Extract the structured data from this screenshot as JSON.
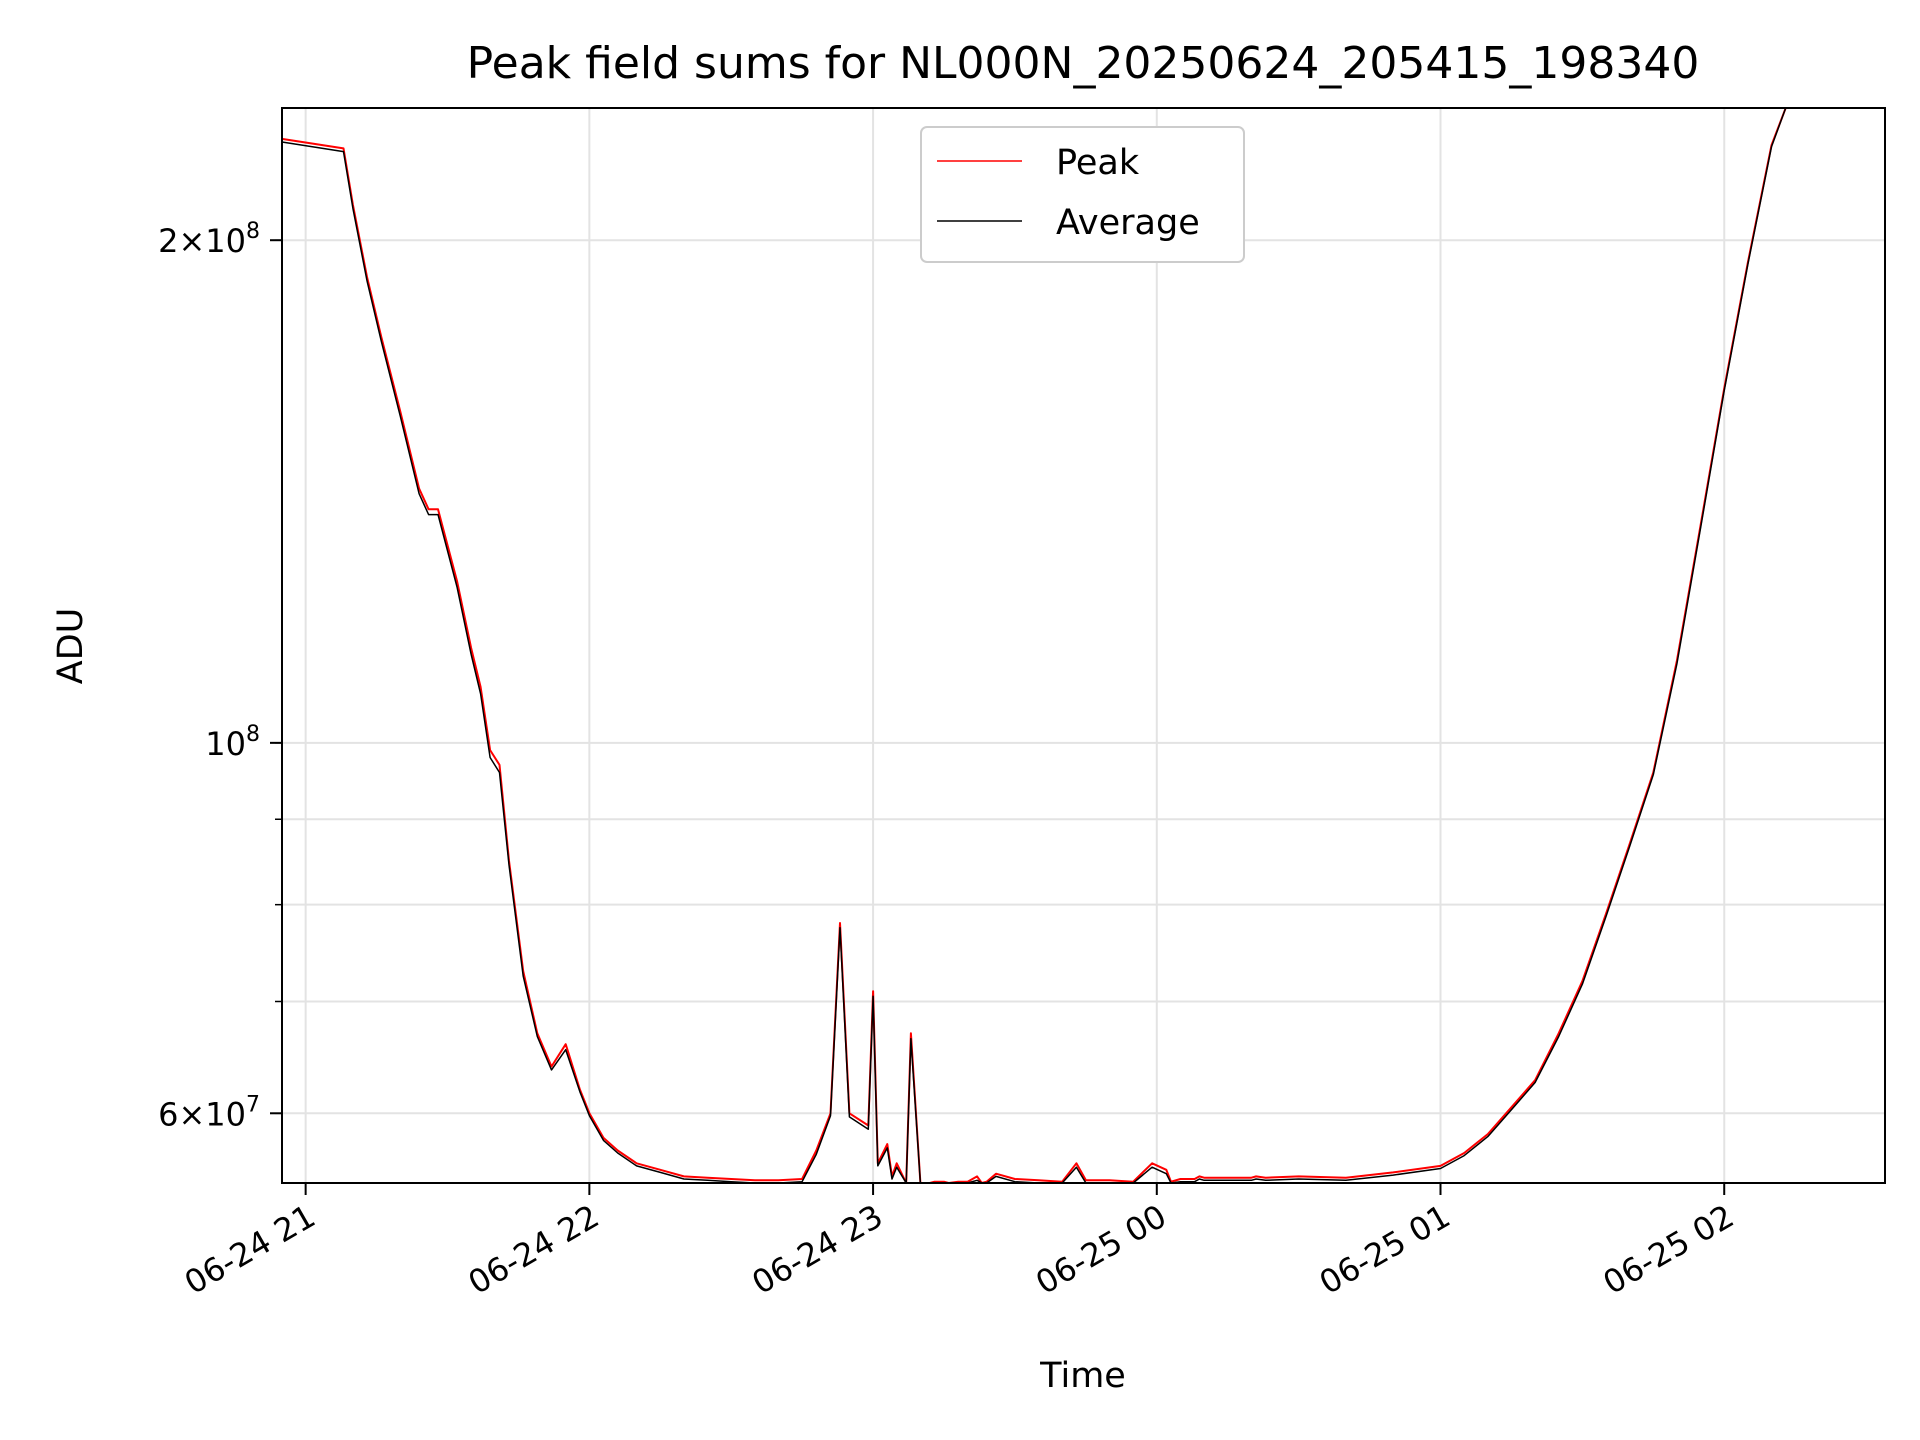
{
  "chart_data": {
    "type": "line",
    "title": "Peak field sums for NL000N_20250624_205415_198340",
    "xlabel": "Time",
    "ylabel": "ADU",
    "yscale": "log",
    "grid": true,
    "legend_placement": "top-center",
    "x_ticks": [
      "06-24 21",
      "06-24 22",
      "06-24 23",
      "06-25 00",
      "06-25 01",
      "06-25 02"
    ],
    "y_ticks": [
      {
        "value": 60000000,
        "mantissa": "6",
        "exponent": "7"
      },
      {
        "value": 100000000,
        "mantissa": "",
        "exponent": "8"
      },
      {
        "value": 200000000,
        "mantissa": "2",
        "exponent": "8"
      }
    ],
    "xlim": [
      "2025-06-24 20:55",
      "2025-06-25 02:34"
    ],
    "ylim": [
      54500000,
      240000000
    ],
    "series": [
      {
        "name": "Peak",
        "color": "#ff0000",
        "x": [
          "2025-06-24 20:55",
          "2025-06-24 21:08",
          "2025-06-24 21:10",
          "2025-06-24 21:13",
          "2025-06-24 21:16",
          "2025-06-24 21:20",
          "2025-06-24 21:24",
          "2025-06-24 21:26",
          "2025-06-24 21:28",
          "2025-06-24 21:32",
          "2025-06-24 21:35",
          "2025-06-24 21:37",
          "2025-06-24 21:39",
          "2025-06-24 21:41",
          "2025-06-24 21:43",
          "2025-06-24 21:46",
          "2025-06-24 21:49",
          "2025-06-24 21:52",
          "2025-06-24 21:55",
          "2025-06-24 21:58",
          "2025-06-24 22:00",
          "2025-06-24 22:03",
          "2025-06-24 22:06",
          "2025-06-24 22:10",
          "2025-06-24 22:15",
          "2025-06-24 22:20",
          "2025-06-24 22:25",
          "2025-06-24 22:30",
          "2025-06-24 22:35",
          "2025-06-24 22:40",
          "2025-06-24 22:45",
          "2025-06-24 22:48",
          "2025-06-24 22:51",
          "2025-06-24 22:53",
          "2025-06-24 22:55",
          "2025-06-24 22:59",
          "2025-06-24 23:00",
          "2025-06-24 23:01",
          "2025-06-24 23:03",
          "2025-06-24 23:04",
          "2025-06-24 23:05",
          "2025-06-24 23:07",
          "2025-06-24 23:08",
          "2025-06-24 23:10",
          "2025-06-24 23:12",
          "2025-06-24 23:13",
          "2025-06-24 23:15",
          "2025-06-24 23:16",
          "2025-06-24 23:18",
          "2025-06-24 23:20",
          "2025-06-24 23:22",
          "2025-06-24 23:23",
          "2025-06-24 23:24",
          "2025-06-24 23:26",
          "2025-06-24 23:30",
          "2025-06-24 23:35",
          "2025-06-24 23:40",
          "2025-06-24 23:43",
          "2025-06-24 23:45",
          "2025-06-24 23:50",
          "2025-06-24 23:55",
          "2025-06-24 23:59",
          "2025-06-25 00:02",
          "2025-06-25 00:03",
          "2025-06-25 00:05",
          "2025-06-25 00:08",
          "2025-06-25 00:09",
          "2025-06-25 00:10",
          "2025-06-25 00:15",
          "2025-06-25 00:20",
          "2025-06-25 00:21",
          "2025-06-25 00:23",
          "2025-06-25 00:30",
          "2025-06-25 00:40",
          "2025-06-25 00:50",
          "2025-06-25 01:00",
          "2025-06-25 01:05",
          "2025-06-25 01:10",
          "2025-06-25 01:15",
          "2025-06-25 01:20",
          "2025-06-25 01:25",
          "2025-06-25 01:30",
          "2025-06-25 01:35",
          "2025-06-25 01:40",
          "2025-06-25 01:45",
          "2025-06-25 01:50",
          "2025-06-25 01:55",
          "2025-06-25 02:00",
          "2025-06-25 02:05",
          "2025-06-25 02:10",
          "2025-06-25 02:13",
          "2025-06-25 02:16"
        ],
        "values": [
          230000000,
          227000000,
          210000000,
          190000000,
          175000000,
          158000000,
          142000000,
          138000000,
          138000000,
          125000000,
          114000000,
          108000000,
          99000000,
          97000000,
          85000000,
          73000000,
          67000000,
          64000000,
          66000000,
          62000000,
          60000000,
          58000000,
          57000000,
          56000000,
          55500000,
          55000000,
          54900000,
          54800000,
          54700000,
          54700000,
          54800000,
          57000000,
          60000000,
          78000000,
          60000000,
          59000000,
          71000000,
          56000000,
          57500000,
          55000000,
          56000000,
          54500000,
          67000000,
          54500000,
          54500000,
          54600000,
          54600000,
          54500000,
          54600000,
          54600000,
          55000000,
          54500000,
          54600000,
          55200000,
          54800000,
          54700000,
          54600000,
          56000000,
          54700000,
          54700000,
          54600000,
          56000000,
          55500000,
          54600000,
          54800000,
          54800000,
          55000000,
          54900000,
          54900000,
          54900000,
          55000000,
          54900000,
          55000000,
          54900000,
          55300000,
          55800000,
          56800000,
          58300000,
          60500000,
          62800000,
          67000000,
          72000000,
          79000000,
          87000000,
          96000000,
          112000000,
          135000000,
          163000000,
          194000000,
          228000000,
          240000000,
          240000000
        ]
      },
      {
        "name": "Average",
        "color": "#000000",
        "x": [
          "2025-06-24 20:55",
          "2025-06-24 21:08",
          "2025-06-24 21:10",
          "2025-06-24 21:13",
          "2025-06-24 21:16",
          "2025-06-24 21:20",
          "2025-06-24 21:24",
          "2025-06-24 21:26",
          "2025-06-24 21:28",
          "2025-06-24 21:32",
          "2025-06-24 21:35",
          "2025-06-24 21:37",
          "2025-06-24 21:39",
          "2025-06-24 21:41",
          "2025-06-24 21:43",
          "2025-06-24 21:46",
          "2025-06-24 21:49",
          "2025-06-24 21:52",
          "2025-06-24 21:55",
          "2025-06-24 21:58",
          "2025-06-24 22:00",
          "2025-06-24 22:03",
          "2025-06-24 22:06",
          "2025-06-24 22:10",
          "2025-06-24 22:15",
          "2025-06-24 22:20",
          "2025-06-24 22:25",
          "2025-06-24 22:30",
          "2025-06-24 22:35",
          "2025-06-24 22:40",
          "2025-06-24 22:45",
          "2025-06-24 22:48",
          "2025-06-24 22:51",
          "2025-06-24 22:53",
          "2025-06-24 22:55",
          "2025-06-24 22:59",
          "2025-06-24 23:00",
          "2025-06-24 23:01",
          "2025-06-24 23:03",
          "2025-06-24 23:04",
          "2025-06-24 23:05",
          "2025-06-24 23:07",
          "2025-06-24 23:08",
          "2025-06-24 23:10",
          "2025-06-24 23:12",
          "2025-06-24 23:13",
          "2025-06-24 23:15",
          "2025-06-24 23:16",
          "2025-06-24 23:18",
          "2025-06-24 23:20",
          "2025-06-24 23:22",
          "2025-06-24 23:23",
          "2025-06-24 23:24",
          "2025-06-24 23:26",
          "2025-06-24 23:30",
          "2025-06-24 23:35",
          "2025-06-24 23:40",
          "2025-06-24 23:43",
          "2025-06-24 23:45",
          "2025-06-24 23:50",
          "2025-06-24 23:55",
          "2025-06-24 23:59",
          "2025-06-25 00:02",
          "2025-06-25 00:03",
          "2025-06-25 00:05",
          "2025-06-25 00:08",
          "2025-06-25 00:09",
          "2025-06-25 00:10",
          "2025-06-25 00:15",
          "2025-06-25 00:20",
          "2025-06-25 00:21",
          "2025-06-25 00:23",
          "2025-06-25 00:30",
          "2025-06-25 00:40",
          "2025-06-25 00:50",
          "2025-06-25 01:00",
          "2025-06-25 01:05",
          "2025-06-25 01:10",
          "2025-06-25 01:15",
          "2025-06-25 01:20",
          "2025-06-25 01:25",
          "2025-06-25 01:30",
          "2025-06-25 01:35",
          "2025-06-25 01:40",
          "2025-06-25 01:45",
          "2025-06-25 01:50",
          "2025-06-25 01:55",
          "2025-06-25 02:00",
          "2025-06-25 02:05",
          "2025-06-25 02:10",
          "2025-06-25 02:13",
          "2025-06-25 02:16"
        ],
        "values": [
          229000000,
          226000000,
          209000000,
          189000000,
          174000000,
          157000000,
          141000000,
          137000000,
          137000000,
          124000000,
          113000000,
          107000000,
          98000000,
          96000000,
          84500000,
          72500000,
          66700000,
          63700000,
          65500000,
          61800000,
          59800000,
          57800000,
          56800000,
          55800000,
          55300000,
          54800000,
          54700000,
          54600000,
          54500000,
          54500000,
          54600000,
          56700000,
          59800000,
          77500000,
          59700000,
          58700000,
          70500000,
          55800000,
          57200000,
          54800000,
          55700000,
          54300000,
          66500000,
          54300000,
          54300000,
          54400000,
          54400000,
          54300000,
          54400000,
          54400000,
          54700000,
          54300000,
          54400000,
          55000000,
          54600000,
          54500000,
          54400000,
          55700000,
          54500000,
          54500000,
          54400000,
          55700000,
          55200000,
          54400000,
          54600000,
          54600000,
          54800000,
          54700000,
          54700000,
          54700000,
          54800000,
          54700000,
          54800000,
          54700000,
          55100000,
          55600000,
          56600000,
          58100000,
          60300000,
          62600000,
          66700000,
          71700000,
          78700000,
          86700000,
          95700000,
          111500000,
          134500000,
          162500000,
          193500000,
          227500000,
          240000000,
          240000000
        ]
      }
    ]
  }
}
